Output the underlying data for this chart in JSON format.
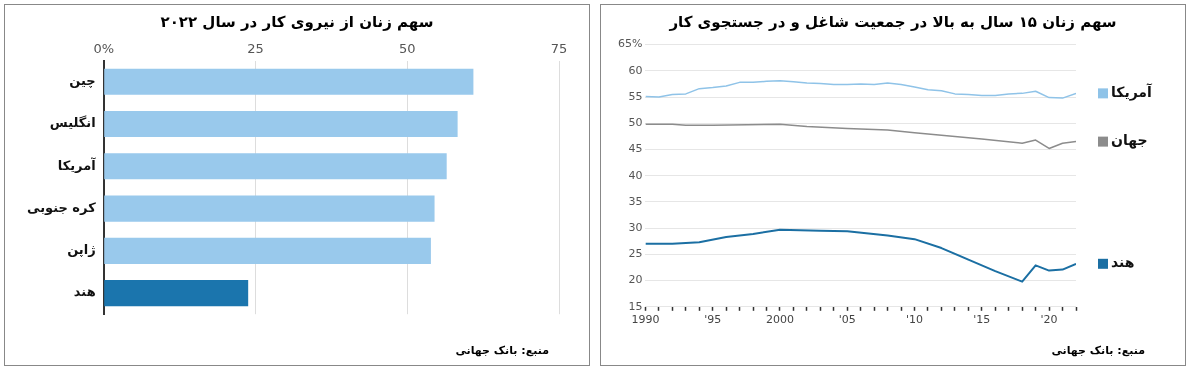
{
  "chart_data": [
    {
      "type": "bar",
      "orientation": "horizontal",
      "title": "سهم زنان از نیروی کار در سال ۲۰۲۲",
      "categories": [
        "چین",
        "انگلیس",
        "آمریکا",
        "کره جنوبی",
        "ژاپن",
        "هند"
      ],
      "values": [
        60.9,
        58.3,
        56.5,
        54.5,
        53.9,
        23.8
      ],
      "colors": [
        "#99c9ec",
        "#99c9ec",
        "#99c9ec",
        "#99c9ec",
        "#99c9ec",
        "#1b75ad"
      ],
      "xlim": [
        0,
        75
      ],
      "xticks": [
        {
          "value": 0,
          "label": "0%"
        },
        25,
        50,
        75
      ],
      "grid": "x",
      "annotations": [
        "منبع: بانک جهانی"
      ]
    },
    {
      "type": "line",
      "title": "سهم زنان ۱۵ سال به بالا در جمعیت شاغل و در جستجوی کار",
      "legend": "right",
      "grid": "y",
      "x": [
        1990,
        1991,
        1992,
        1993,
        1994,
        1995,
        1996,
        1997,
        1998,
        1999,
        2000,
        2001,
        2002,
        2003,
        2004,
        2005,
        2006,
        2007,
        2008,
        2009,
        2010,
        2011,
        2012,
        2013,
        2014,
        2015,
        2016,
        2017,
        2018,
        2019,
        2020,
        2021,
        2022
      ],
      "series": [
        {
          "name": "آمریکا",
          "color": "#8fc3e8",
          "values": [
            55.1,
            55.0,
            55.5,
            55.6,
            56.6,
            56.8,
            57.1,
            57.8,
            57.8,
            58.0,
            58.1,
            57.9,
            57.7,
            57.6,
            57.4,
            57.4,
            57.5,
            57.4,
            57.7,
            57.4,
            56.9,
            56.4,
            56.2,
            55.6,
            55.5,
            55.3,
            55.3,
            55.6,
            55.7,
            56.1,
            54.9,
            54.8,
            55.7
          ]
        },
        {
          "name": "جهان",
          "color": "#8c8c8c",
          "x": [
            1990,
            1992,
            1993,
            1995,
            2000,
            2002,
            2005,
            2008,
            2010,
            2012,
            2015,
            2018,
            2019,
            2020,
            2021,
            2022
          ],
          "values": [
            49.8,
            49.8,
            49.6,
            49.6,
            49.8,
            49.4,
            49.0,
            48.7,
            48.2,
            47.7,
            47.0,
            46.2,
            46.8,
            45.2,
            46.2,
            46.5
          ]
        },
        {
          "name": "هند",
          "color": "#1b6fa3",
          "x": [
            1990,
            1992,
            1994,
            1996,
            1998,
            2000,
            2003,
            2005,
            2008,
            2010,
            2012,
            2014,
            2016,
            2018,
            2019,
            2020,
            2021,
            2022
          ],
          "values": [
            27.0,
            27.0,
            27.3,
            28.3,
            28.9,
            29.7,
            29.5,
            29.4,
            28.6,
            27.9,
            26.2,
            24.0,
            21.8,
            19.8,
            22.9,
            21.9,
            22.1,
            23.2
          ]
        }
      ],
      "xlim": [
        1990,
        2022
      ],
      "xticks": [
        {
          "value": 1990,
          "label": "1990"
        },
        {
          "value": 1991,
          "label": null
        },
        {
          "value": 1992,
          "label": null
        },
        {
          "value": 1993,
          "label": null
        },
        {
          "value": 1994,
          "label": null
        },
        {
          "value": 1995,
          "label": "'95"
        },
        {
          "value": 1996,
          "label": null
        },
        {
          "value": 1997,
          "label": null
        },
        {
          "value": 1998,
          "label": null
        },
        {
          "value": 1999,
          "label": null
        },
        {
          "value": 2000,
          "label": "2000"
        },
        {
          "value": 2001,
          "label": null
        },
        {
          "value": 2002,
          "label": null
        },
        {
          "value": 2003,
          "label": null
        },
        {
          "value": 2004,
          "label": null
        },
        {
          "value": 2005,
          "label": "'05"
        },
        {
          "value": 2006,
          "label": null
        },
        {
          "value": 2007,
          "label": null
        },
        {
          "value": 2008,
          "label": null
        },
        {
          "value": 2009,
          "label": null
        },
        {
          "value": 2010,
          "label": "'10"
        },
        {
          "value": 2011,
          "label": null
        },
        {
          "value": 2012,
          "label": null
        },
        {
          "value": 2013,
          "label": null
        },
        {
          "value": 2014,
          "label": null
        },
        {
          "value": 2015,
          "label": "'15"
        },
        {
          "value": 2016,
          "label": null
        },
        {
          "value": 2017,
          "label": null
        },
        {
          "value": 2018,
          "label": null
        },
        {
          "value": 2019,
          "label": null
        },
        {
          "value": 2020,
          "label": "'20"
        },
        {
          "value": 2021,
          "label": null
        },
        {
          "value": 2022,
          "label": null
        }
      ],
      "ylim": [
        15,
        65
      ],
      "yticks": [
        15,
        20,
        25,
        30,
        35,
        40,
        45,
        50,
        55,
        60,
        {
          "value": 65,
          "label": "65%"
        }
      ],
      "annotations": [
        "منبع: بانک جهانی"
      ]
    }
  ]
}
